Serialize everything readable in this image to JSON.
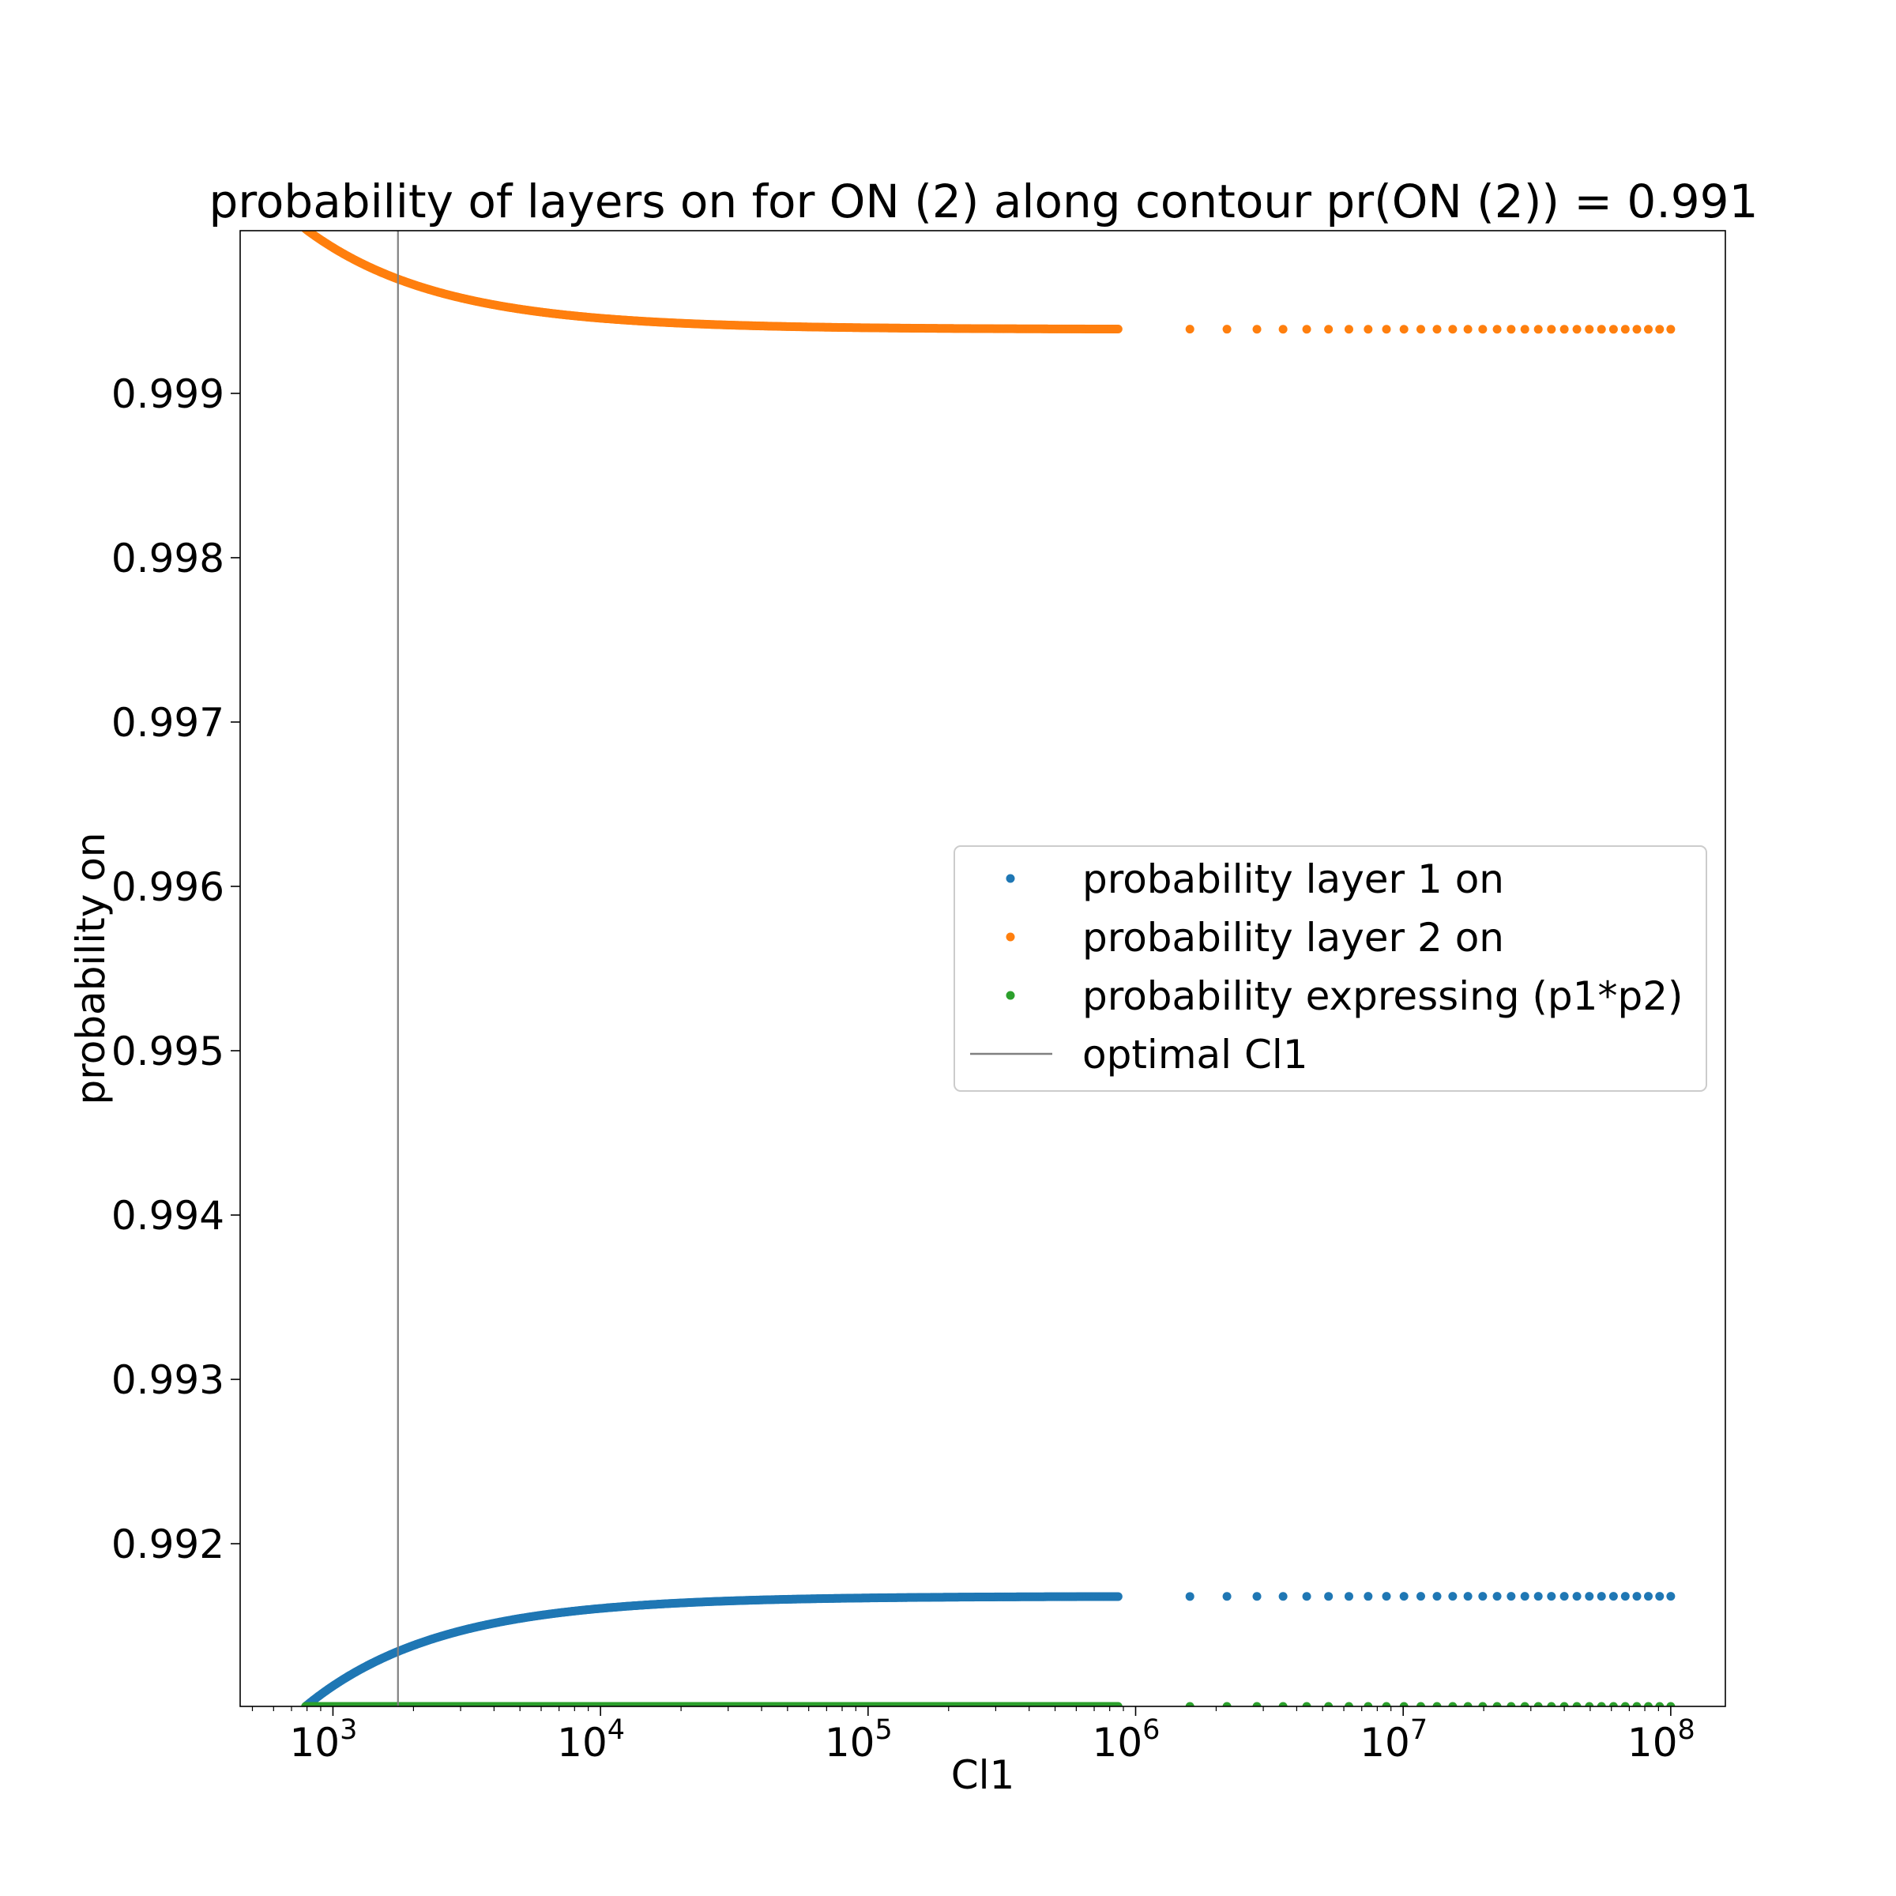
{
  "chart_data": {
    "type": "scatter",
    "title": "probability of layers on for ON (2) along contour pr(ON (2)) = 0.991",
    "xlabel": "Cl1",
    "ylabel": "probability on",
    "xscale": "log",
    "xlim": [
      450,
      160000000
    ],
    "ylim": [
      0.99101,
      0.99999
    ],
    "x_ticks": [
      {
        "value": 1000,
        "base": "10",
        "exp": "3"
      },
      {
        "value": 10000,
        "base": "10",
        "exp": "4"
      },
      {
        "value": 100000,
        "base": "10",
        "exp": "5"
      },
      {
        "value": 1000000,
        "base": "10",
        "exp": "6"
      },
      {
        "value": 10000000,
        "base": "10",
        "exp": "7"
      },
      {
        "value": 100000000,
        "base": "10",
        "exp": "8"
      }
    ],
    "y_ticks": [
      {
        "value": 0.992,
        "label": "0.992"
      },
      {
        "value": 0.993,
        "label": "0.993"
      },
      {
        "value": 0.994,
        "label": "0.994"
      },
      {
        "value": 0.995,
        "label": "0.995"
      },
      {
        "value": 0.996,
        "label": "0.996"
      },
      {
        "value": 0.997,
        "label": "0.997"
      },
      {
        "value": 0.998,
        "label": "0.998"
      },
      {
        "value": 0.999,
        "label": "0.999"
      }
    ],
    "grid": false,
    "legend_position": "center-right",
    "x_range": [
      790,
      100000000
    ],
    "series": [
      {
        "name": "probability layer 1 on",
        "color": "#1f77b4",
        "kind": "points",
        "start": 0.99101,
        "end": 0.99168,
        "tau_decades": 0.5
      },
      {
        "name": "probability layer 2 on",
        "color": "#ff7f0e",
        "kind": "points",
        "start": 1.0,
        "end": 0.99939,
        "tau_decades": 0.5
      },
      {
        "name": "probability expressing (p1*p2)",
        "color": "#2ca02c",
        "kind": "points",
        "start": 0.99101,
        "end": 0.99101,
        "tau_decades": 0.5
      }
    ],
    "vline": {
      "name": "optimal Cl1",
      "x": 1750,
      "color": "#808080"
    }
  }
}
